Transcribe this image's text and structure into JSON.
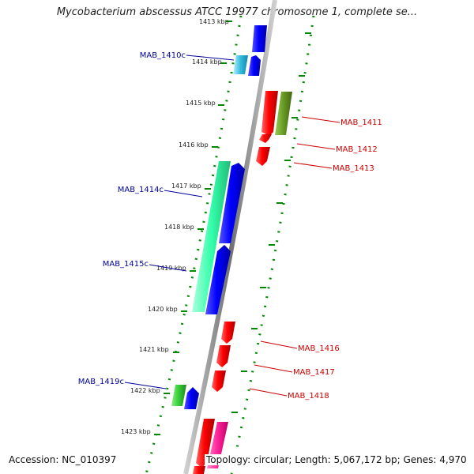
{
  "header": {
    "title": "Mycobacterium abscessus ATCC 19977 chromosome 1, complete se..."
  },
  "footer": {
    "accession": "Accession: NC_010397",
    "topology": "Topology: circular; Length: 5,067,172 bp; Genes: 4,970"
  },
  "ticks": [
    {
      "label": "1413 kbp"
    },
    {
      "label": "1414 kbp"
    },
    {
      "label": "1415 kbp"
    },
    {
      "label": "1416 kbp"
    },
    {
      "label": "1417 kbp"
    },
    {
      "label": "1418 kbp"
    },
    {
      "label": "1419 kbp"
    },
    {
      "label": "1420 kbp"
    },
    {
      "label": "1421 kbp"
    },
    {
      "label": "1422 kbp"
    },
    {
      "label": "1423 kbp"
    }
  ],
  "genes_forward": [
    {
      "label": "MAB_1411",
      "color": "#cc0000"
    },
    {
      "label": "MAB_1412",
      "color": "#cc0000"
    },
    {
      "label": "MAB_1413",
      "color": "#cc0000"
    },
    {
      "label": "MAB_1416",
      "color": "#cc0000"
    },
    {
      "label": "MAB_1417",
      "color": "#cc0000"
    },
    {
      "label": "MAB_1418",
      "color": "#cc0000"
    }
  ],
  "genes_reverse": [
    {
      "label": "MAB_1410c",
      "color": "#000099"
    },
    {
      "label": "MAB_1414c",
      "color": "#000099"
    },
    {
      "label": "MAB_1415c",
      "color": "#000099"
    },
    {
      "label": "MAB_1419c",
      "color": "#000099"
    }
  ],
  "colors": {
    "backbone": "#808080",
    "cds_forward": "#ff0000",
    "cds_reverse": "#0000ff",
    "tick": "#008800",
    "orf_teal": "#33ffaa",
    "orf_olive": "#669922",
    "orf_green": "#33cc33",
    "orf_cyan": "#33bbdd",
    "orf_magenta": "#ff2299"
  }
}
